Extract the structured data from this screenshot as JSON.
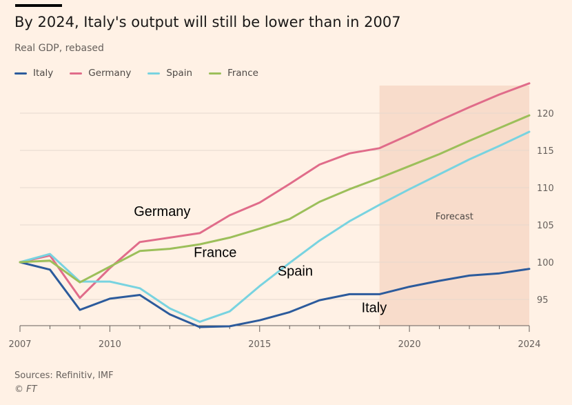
{
  "header": {
    "title": "By 2024, Italy's output will still be lower than in 2007",
    "subtitle": "Real GDP, rebased"
  },
  "legend": [
    {
      "label": "Italy",
      "color": "#2c5b9c"
    },
    {
      "label": "Germany",
      "color": "#e06c8a"
    },
    {
      "label": "Spain",
      "color": "#78d3e0"
    },
    {
      "label": "France",
      "color": "#9cbf5a"
    }
  ],
  "footer": {
    "source": "Sources: Refinitiv, IMF",
    "credit": "© FT"
  },
  "chart_data": {
    "type": "line",
    "title": "By 2024, Italy's output will still be lower than in 2007",
    "subtitle": "Real GDP, rebased",
    "x": [
      2007,
      2008,
      2009,
      2010,
      2011,
      2012,
      2013,
      2014,
      2015,
      2016,
      2017,
      2018,
      2019,
      2020,
      2021,
      2022,
      2023,
      2024
    ],
    "series": [
      {
        "name": "Italy",
        "color": "#2c5b9c",
        "values": [
          100,
          99,
          93.6,
          95.1,
          95.6,
          93,
          91.3,
          91.4,
          92.2,
          93.3,
          94.9,
          95.7,
          95.7,
          96.7,
          97.5,
          98.2,
          98.5,
          99.1
        ]
      },
      {
        "name": "Germany",
        "color": "#e06c8a",
        "values": [
          100,
          100.9,
          95.2,
          99.2,
          102.7,
          103.3,
          103.9,
          106.3,
          108,
          110.5,
          113.1,
          114.6,
          115.3,
          117.1,
          119,
          120.8,
          122.5,
          124
        ]
      },
      {
        "name": "Spain",
        "color": "#78d3e0",
        "values": [
          100,
          101.1,
          97.4,
          97.4,
          96.5,
          93.8,
          92,
          93.4,
          96.8,
          99.9,
          102.9,
          105.5,
          107.7,
          109.8,
          111.8,
          113.8,
          115.6,
          117.5
        ]
      },
      {
        "name": "France",
        "color": "#9cbf5a",
        "values": [
          100,
          100.2,
          97.3,
          99.4,
          101.5,
          101.8,
          102.4,
          103.3,
          104.5,
          105.8,
          108.1,
          109.8,
          111.3,
          112.9,
          114.5,
          116.3,
          118,
          119.7
        ]
      }
    ],
    "annotations": [
      {
        "text": "Germany",
        "x": 2010.8,
        "y": 106.2
      },
      {
        "text": "France",
        "x": 2012.8,
        "y": 100.7
      },
      {
        "text": "Spain",
        "x": 2015.6,
        "y": 98.2
      },
      {
        "text": "Italy",
        "x": 2018.4,
        "y": 93.3
      }
    ],
    "forecast": {
      "label": "Forecast",
      "from": 2019,
      "to": 2024
    },
    "xlim": [
      2007,
      2024
    ],
    "ylim": [
      91,
      124.5
    ],
    "yticks": [
      95,
      100,
      105,
      110,
      115,
      120
    ],
    "xticks": [
      2007,
      2010,
      2015,
      2020,
      2024
    ],
    "grid": true,
    "legend_position": "top-left"
  }
}
